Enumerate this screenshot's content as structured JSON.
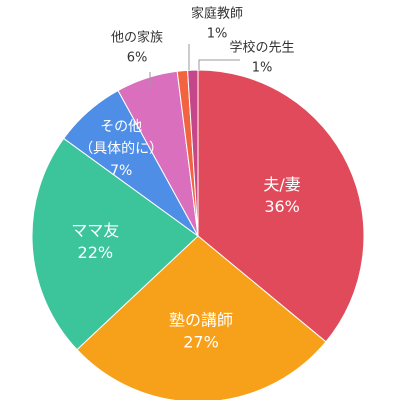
{
  "chart_data": {
    "type": "pie",
    "title": "",
    "series": [
      {
        "name": "夫/妻",
        "value": 36,
        "label": "36%",
        "color": "#e04a5a",
        "label_position": "inside",
        "text_color": "#ffffff"
      },
      {
        "name": "塾の講師",
        "value": 27,
        "label": "27%",
        "color": "#f7a11a",
        "label_position": "inside",
        "text_color": "#ffffff"
      },
      {
        "name": "ママ友",
        "value": 22,
        "label": "22%",
        "color": "#3cc49b",
        "label_position": "inside",
        "text_color": "#ffffff"
      },
      {
        "name": "その他\n（具体的に）",
        "value": 7,
        "label": "7%",
        "color": "#4f8ee6",
        "label_position": "inside",
        "text_color": "#ffffff"
      },
      {
        "name": "他の家族",
        "value": 6,
        "label": "6%",
        "color": "#da6fbd",
        "label_position": "outside",
        "text_color": "#333333"
      },
      {
        "name": "家庭教師",
        "value": 1,
        "label": "1%",
        "color": "#f26440",
        "label_position": "outside",
        "text_color": "#333333"
      },
      {
        "name": "学校の先生",
        "value": 1,
        "label": "1%",
        "color": "#c4478a",
        "label_position": "outside",
        "text_color": "#333333"
      }
    ]
  }
}
